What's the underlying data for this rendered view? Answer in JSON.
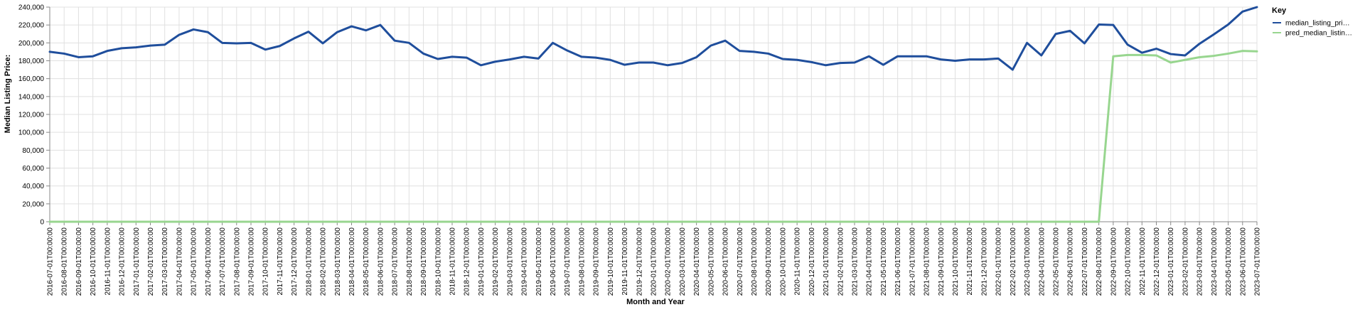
{
  "chart_data": {
    "type": "line",
    "xlabel": "Month and Year",
    "ylabel": "Median Listing Price:",
    "ylim": [
      0,
      240000
    ],
    "y_ticks": [
      "0",
      "20,000",
      "40,000",
      "60,000",
      "80,000",
      "100,000",
      "120,000",
      "140,000",
      "160,000",
      "180,000",
      "200,000",
      "220,000",
      "240,000"
    ],
    "x": [
      "2016-07-01T00:00:00",
      "2016-08-01T00:00:00",
      "2016-09-01T00:00:00",
      "2016-10-01T00:00:00",
      "2016-11-01T00:00:00",
      "2016-12-01T00:00:00",
      "2017-01-01T00:00:00",
      "2017-02-01T00:00:00",
      "2017-03-01T00:00:00",
      "2017-04-01T00:00:00",
      "2017-05-01T00:00:00",
      "2017-06-01T00:00:00",
      "2017-07-01T00:00:00",
      "2017-08-01T00:00:00",
      "2017-09-01T00:00:00",
      "2017-10-01T00:00:00",
      "2017-11-01T00:00:00",
      "2017-12-01T00:00:00",
      "2018-01-01T00:00:00",
      "2018-02-01T00:00:00",
      "2018-03-01T00:00:00",
      "2018-04-01T00:00:00",
      "2018-05-01T00:00:00",
      "2018-06-01T00:00:00",
      "2018-07-01T00:00:00",
      "2018-08-01T00:00:00",
      "2018-09-01T00:00:00",
      "2018-10-01T00:00:00",
      "2018-11-01T00:00:00",
      "2018-12-01T00:00:00",
      "2019-01-01T00:00:00",
      "2019-02-01T00:00:00",
      "2019-03-01T00:00:00",
      "2019-04-01T00:00:00",
      "2019-05-01T00:00:00",
      "2019-06-01T00:00:00",
      "2019-07-01T00:00:00",
      "2019-08-01T00:00:00",
      "2019-09-01T00:00:00",
      "2019-10-01T00:00:00",
      "2019-11-01T00:00:00",
      "2019-12-01T00:00:00",
      "2020-01-01T00:00:00",
      "2020-02-01T00:00:00",
      "2020-03-01T00:00:00",
      "2020-04-01T00:00:00",
      "2020-05-01T00:00:00",
      "2020-06-01T00:00:00",
      "2020-07-01T00:00:00",
      "2020-08-01T00:00:00",
      "2020-09-01T00:00:00",
      "2020-10-01T00:00:00",
      "2020-11-01T00:00:00",
      "2020-12-01T00:00:00",
      "2021-01-01T00:00:00",
      "2021-02-01T00:00:00",
      "2021-03-01T00:00:00",
      "2021-04-01T00:00:00",
      "2021-05-01T00:00:00",
      "2021-06-01T00:00:00",
      "2021-07-01T00:00:00",
      "2021-08-01T00:00:00",
      "2021-09-01T00:00:00",
      "2021-10-01T00:00:00",
      "2021-11-01T00:00:00",
      "2021-12-01T00:00:00",
      "2022-01-01T00:00:00",
      "2022-02-01T00:00:00",
      "2022-03-01T00:00:00",
      "2022-04-01T00:00:00",
      "2022-05-01T00:00:00",
      "2022-06-01T00:00:00",
      "2022-07-01T00:00:00",
      "2022-08-01T00:00:00",
      "2022-09-01T00:00:00",
      "2022-10-01T00:00:00",
      "2022-11-01T00:00:00",
      "2022-12-01T00:00:00",
      "2023-01-01T00:00:00",
      "2023-02-01T00:00:00",
      "2023-03-01T00:00:00",
      "2023-04-01T00:00:00",
      "2023-05-01T00:00:00",
      "2023-06-01T00:00:00",
      "2023-07-01T00:00:00"
    ],
    "series": [
      {
        "name": "median_listing_pri…",
        "color": "#1f4e9c",
        "values": [
          190000,
          188000,
          184000,
          185000,
          191000,
          194000,
          195000,
          197000,
          198000,
          209000,
          215000,
          212000,
          200000,
          199500,
          200000,
          192500,
          196500,
          205000,
          212500,
          199500,
          212000,
          218500,
          214000,
          220000,
          202500,
          200000,
          188000,
          182000,
          184500,
          183500,
          175000,
          179000,
          181500,
          184500,
          182500,
          200000,
          191500,
          184500,
          183500,
          181000,
          175500,
          178000,
          178000,
          175000,
          177500,
          184000,
          197000,
          202500,
          191000,
          190000,
          188000,
          182000,
          181000,
          178500,
          175000,
          177500,
          178000,
          185000,
          175500,
          185000,
          185000,
          185000,
          181500,
          180000,
          181500,
          181500,
          182500,
          170000,
          200000,
          186000,
          210000,
          213500,
          199500,
          220500,
          220000,
          198000,
          189000,
          193500,
          187500,
          186000,
          199000,
          209500,
          220500,
          235000,
          240000
        ]
      },
      {
        "name": "pred_median_listin…",
        "color": "#98d68f",
        "values": [
          0,
          0,
          0,
          0,
          0,
          0,
          0,
          0,
          0,
          0,
          0,
          0,
          0,
          0,
          0,
          0,
          0,
          0,
          0,
          0,
          0,
          0,
          0,
          0,
          0,
          0,
          0,
          0,
          0,
          0,
          0,
          0,
          0,
          0,
          0,
          0,
          0,
          0,
          0,
          0,
          0,
          0,
          0,
          0,
          0,
          0,
          0,
          0,
          0,
          0,
          0,
          0,
          0,
          0,
          0,
          0,
          0,
          0,
          0,
          0,
          0,
          0,
          0,
          0,
          0,
          0,
          0,
          0,
          0,
          0,
          0,
          0,
          0,
          0,
          185000,
          186500,
          186500,
          186000,
          178000,
          181000,
          184000,
          185500,
          188000,
          191000,
          190500
        ]
      }
    ],
    "legend_title": "Key",
    "legend_position": "right",
    "grid": true,
    "gridline_color": "#e0e0e0",
    "axis_color": "#888888"
  }
}
